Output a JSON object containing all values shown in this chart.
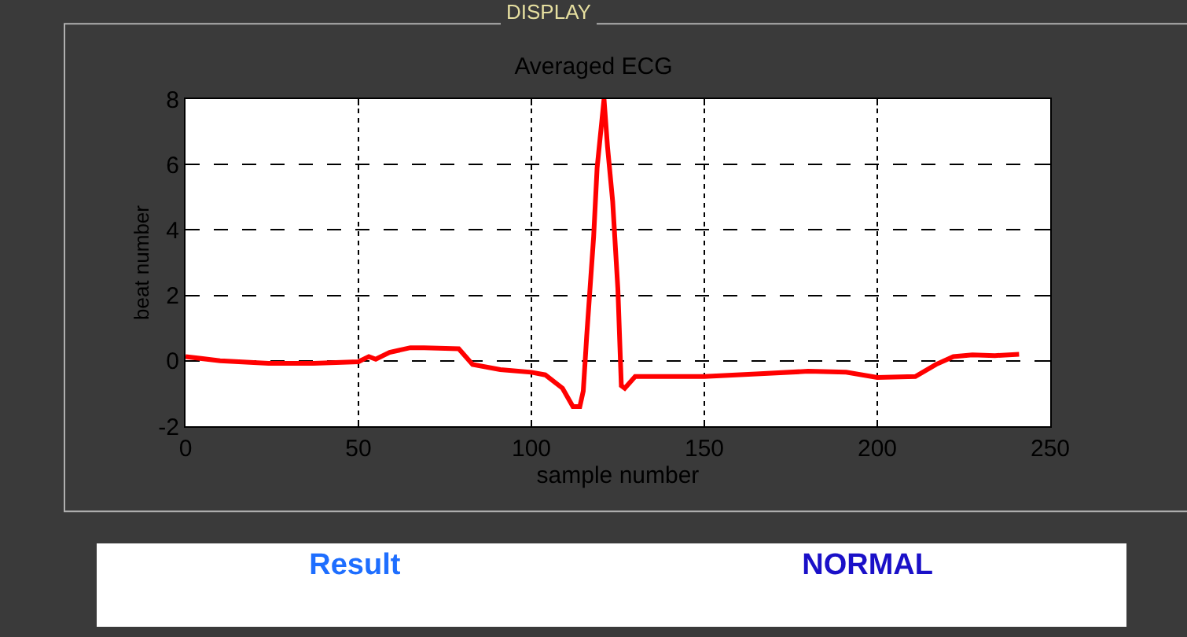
{
  "chart_data": {
    "type": "line",
    "title": "Averaged ECG",
    "xlabel": "sample number",
    "ylabel": "beat number",
    "x": [
      0,
      10,
      24,
      37,
      50,
      53,
      55,
      59,
      65,
      69,
      79,
      83,
      91,
      100,
      104,
      109,
      112,
      114,
      115,
      116,
      118,
      119,
      121,
      122,
      123.5,
      125,
      126,
      127,
      130,
      150,
      165,
      180,
      191,
      200,
      211,
      217,
      222,
      227.5,
      234,
      241
    ],
    "series": [
      {
        "color": "#ff0000",
        "values": [
          0.13,
          0,
          -0.08,
          -0.08,
          -0.03,
          0.13,
          0.05,
          0.26,
          0.4,
          0.4,
          0.37,
          -0.11,
          -0.27,
          -0.35,
          -0.43,
          -0.84,
          -1.4,
          -1.4,
          -0.92,
          0.77,
          3.8,
          5.9,
          8.0,
          6.55,
          4.87,
          2.2,
          -0.76,
          -0.84,
          -0.48,
          -0.48,
          -0.4,
          -0.32,
          -0.35,
          -0.51,
          -0.48,
          -0.11,
          0.13,
          0.18,
          0.16,
          0.2
        ]
      }
    ],
    "xlim": [
      0,
      250
    ],
    "xticks": [
      0,
      50,
      100,
      150,
      200,
      250
    ],
    "ylim": [
      -2,
      8
    ],
    "yticks": [
      -2,
      0,
      2,
      4,
      6,
      8
    ],
    "grid": true,
    "legend": false,
    "marker": "none",
    "line_style": "solid",
    "annotations": [
      "DISPLAY",
      "Result",
      "NORMAL"
    ]
  }
}
